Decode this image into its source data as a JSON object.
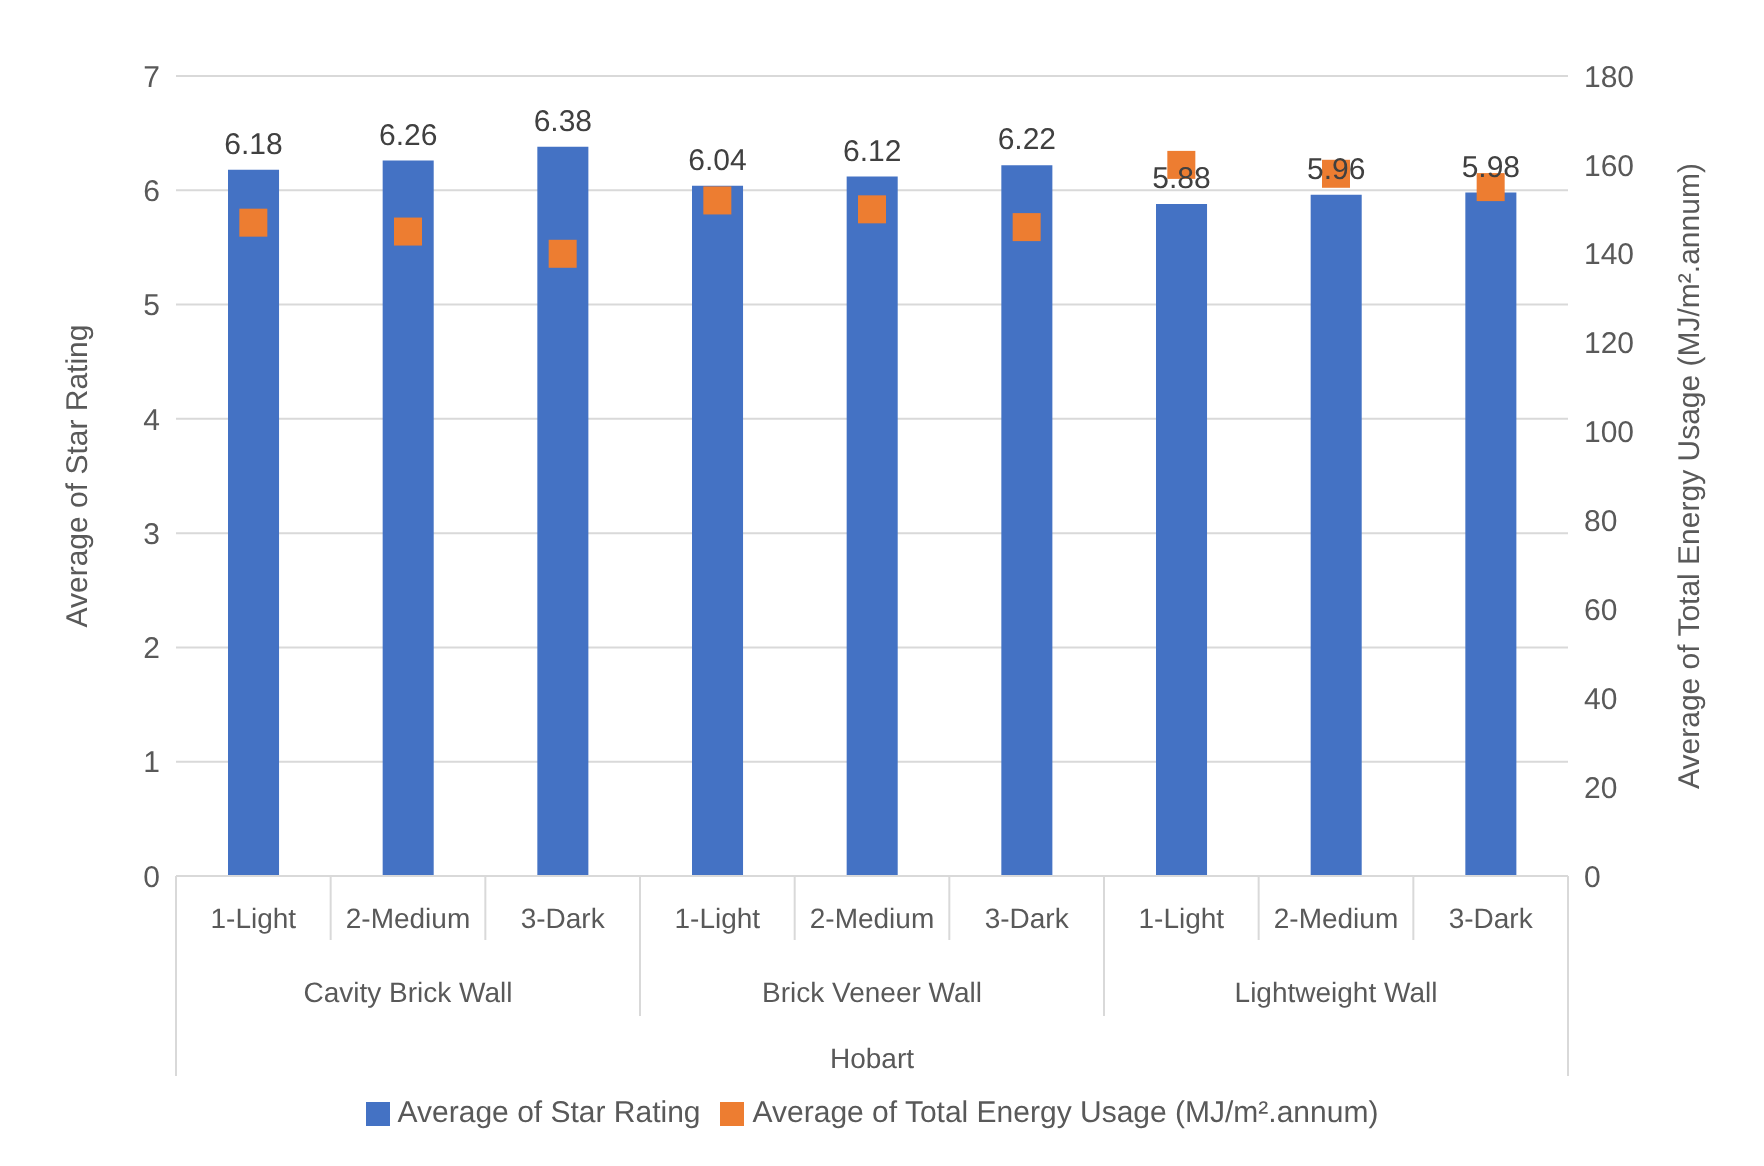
{
  "chart_data": {
    "type": "bar",
    "categories": [
      "1-Light",
      "2-Medium",
      "3-Dark",
      "1-Light",
      "2-Medium",
      "3-Dark",
      "1-Light",
      "2-Medium",
      "3-Dark"
    ],
    "series": [
      {
        "name": "Average of Star Rating",
        "color": "#4472c4",
        "values": [
          6.18,
          6.26,
          6.38,
          6.04,
          6.12,
          6.22,
          5.88,
          5.96,
          5.98
        ],
        "value_labels": [
          "6.18",
          "6.26",
          "6.38",
          "6.04",
          "6.12",
          "6.22",
          "5.88",
          "5.96",
          "5.98"
        ]
      },
      {
        "name": "Average of Total Energy Usage (MJ/m².annum)",
        "type": "scatter",
        "axis": "y2",
        "marker": "square",
        "color": "#ed7d31",
        "values": [
          147,
          145,
          140,
          152,
          150,
          146,
          160,
          158,
          155
        ]
      }
    ],
    "ylabel": "Average of Star Rating",
    "y2label": "Average of Total Energy Usage (MJ/m².annum)",
    "ylim": [
      0,
      7
    ],
    "yticks": [
      0,
      1,
      2,
      3,
      4,
      5,
      6,
      7
    ],
    "y2lim": [
      0,
      180
    ],
    "y2ticks": [
      0,
      20,
      40,
      60,
      80,
      100,
      120,
      140,
      160,
      180
    ],
    "annotations": [
      "Cavity Brick Wall",
      "Brick Veneer Wall",
      "Lightweight Wall",
      "Hobart"
    ],
    "grid": "y",
    "legend": "bottom"
  }
}
